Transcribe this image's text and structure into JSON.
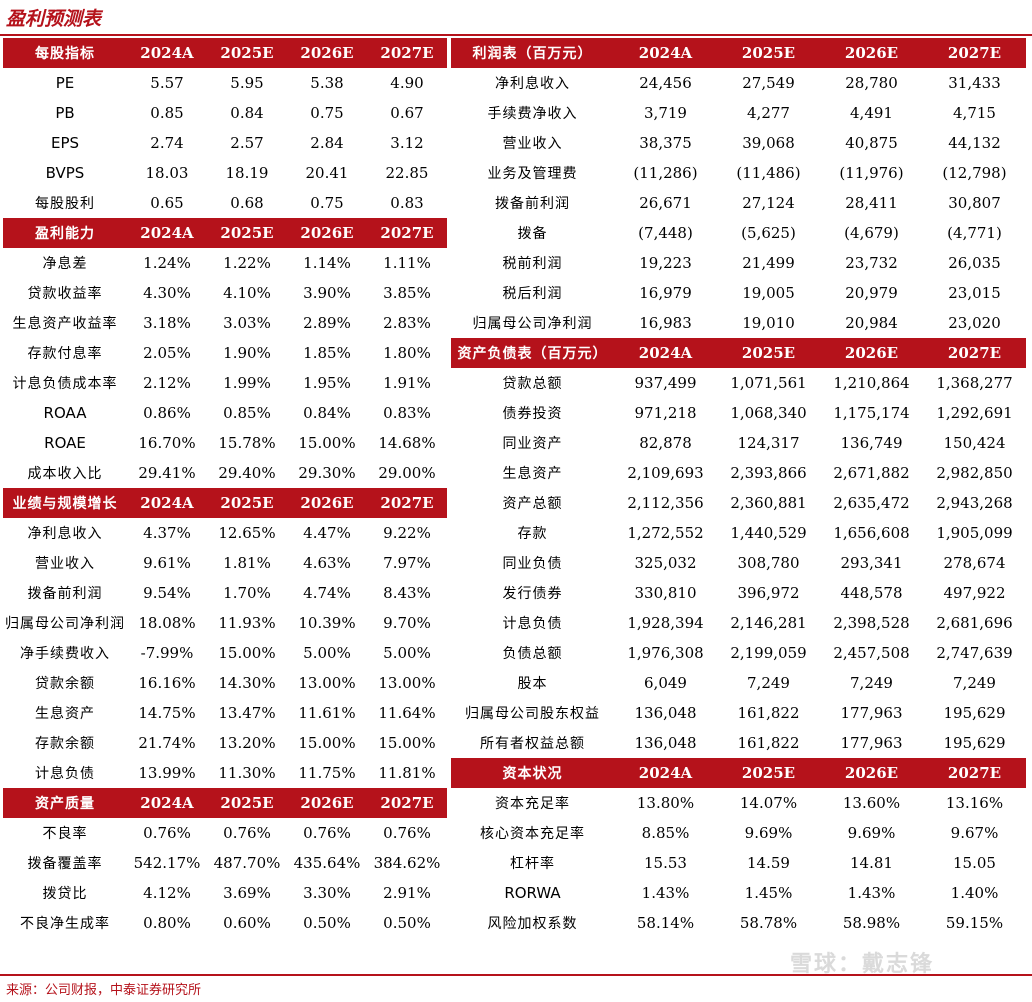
{
  "title": "盈利预测表",
  "source": "来源：公司财报，中泰证券研究所",
  "watermark": "雪球：戴志锋",
  "left_sections": [
    {
      "headers": [
        "每股指标",
        "2024A",
        "2025E",
        "2026E",
        "2027E"
      ],
      "rows": [
        [
          "PE",
          "5.57",
          "5.95",
          "5.38",
          "4.90"
        ],
        [
          "PB",
          "0.85",
          "0.84",
          "0.75",
          "0.67"
        ],
        [
          "EPS",
          "2.74",
          "2.57",
          "2.84",
          "3.12"
        ],
        [
          "BVPS",
          "18.03",
          "18.19",
          "20.41",
          "22.85"
        ],
        [
          "每股股利",
          "0.65",
          "0.68",
          "0.75",
          "0.83"
        ]
      ]
    },
    {
      "headers": [
        "盈利能力",
        "2024A",
        "2025E",
        "2026E",
        "2027E"
      ],
      "rows": [
        [
          "净息差",
          "1.24%",
          "1.22%",
          "1.14%",
          "1.11%"
        ],
        [
          "贷款收益率",
          "4.30%",
          "4.10%",
          "3.90%",
          "3.85%"
        ],
        [
          "生息资产收益率",
          "3.18%",
          "3.03%",
          "2.89%",
          "2.83%"
        ],
        [
          "存款付息率",
          "2.05%",
          "1.90%",
          "1.85%",
          "1.80%"
        ],
        [
          "计息负债成本率",
          "2.12%",
          "1.99%",
          "1.95%",
          "1.91%"
        ],
        [
          "ROAA",
          "0.86%",
          "0.85%",
          "0.84%",
          "0.83%"
        ],
        [
          "ROAE",
          "16.70%",
          "15.78%",
          "15.00%",
          "14.68%"
        ],
        [
          "成本收入比",
          "29.41%",
          "29.40%",
          "29.30%",
          "29.00%"
        ]
      ]
    },
    {
      "headers": [
        "业绩与规模增长",
        "2024A",
        "2025E",
        "2026E",
        "2027E"
      ],
      "rows": [
        [
          "净利息收入",
          "4.37%",
          "12.65%",
          "4.47%",
          "9.22%"
        ],
        [
          "营业收入",
          "9.61%",
          "1.81%",
          "4.63%",
          "7.97%"
        ],
        [
          "拨备前利润",
          "9.54%",
          "1.70%",
          "4.74%",
          "8.43%"
        ],
        [
          "归属母公司净利润",
          "18.08%",
          "11.93%",
          "10.39%",
          "9.70%"
        ],
        [
          "净手续费收入",
          "-7.99%",
          "15.00%",
          "5.00%",
          "5.00%"
        ],
        [
          "贷款余额",
          "16.16%",
          "14.30%",
          "13.00%",
          "13.00%"
        ],
        [
          "生息资产",
          "14.75%",
          "13.47%",
          "11.61%",
          "11.64%"
        ],
        [
          "存款余额",
          "21.74%",
          "13.20%",
          "15.00%",
          "15.00%"
        ],
        [
          "计息负债",
          "13.99%",
          "11.30%",
          "11.75%",
          "11.81%"
        ]
      ]
    },
    {
      "headers": [
        "资产质量",
        "2024A",
        "2025E",
        "2026E",
        "2027E"
      ],
      "rows": [
        [
          "不良率",
          "0.76%",
          "0.76%",
          "0.76%",
          "0.76%"
        ],
        [
          "拨备覆盖率",
          "542.17%",
          "487.70%",
          "435.64%",
          "384.62%"
        ],
        [
          "拨贷比",
          "4.12%",
          "3.69%",
          "3.30%",
          "2.91%"
        ],
        [
          "不良净生成率",
          "0.80%",
          "0.60%",
          "0.50%",
          "0.50%"
        ]
      ]
    }
  ],
  "right_sections": [
    {
      "headers": [
        "利润表（百万元）",
        "2024A",
        "2025E",
        "2026E",
        "2027E"
      ],
      "rows": [
        [
          "净利息收入",
          "24,456",
          "27,549",
          "28,780",
          "31,433"
        ],
        [
          "手续费净收入",
          "3,719",
          "4,277",
          "4,491",
          "4,715"
        ],
        [
          "营业收入",
          "38,375",
          "39,068",
          "40,875",
          "44,132"
        ],
        [
          "业务及管理费",
          "(11,286)",
          "(11,486)",
          "(11,976)",
          "(12,798)"
        ],
        [
          "拨备前利润",
          "26,671",
          "27,124",
          "28,411",
          "30,807"
        ],
        [
          "拨备",
          "(7,448)",
          "(5,625)",
          "(4,679)",
          "(4,771)"
        ],
        [
          "税前利润",
          "19,223",
          "21,499",
          "23,732",
          "26,035"
        ],
        [
          "税后利润",
          "16,979",
          "19,005",
          "20,979",
          "23,015"
        ],
        [
          "归属母公司净利润",
          "16,983",
          "19,010",
          "20,984",
          "23,020"
        ]
      ]
    },
    {
      "headers": [
        "资产负债表（百万元）",
        "2024A",
        "2025E",
        "2026E",
        "2027E"
      ],
      "rows": [
        [
          "贷款总额",
          "937,499",
          "1,071,561",
          "1,210,864",
          "1,368,277"
        ],
        [
          "债券投资",
          "971,218",
          "1,068,340",
          "1,175,174",
          "1,292,691"
        ],
        [
          "同业资产",
          "82,878",
          "124,317",
          "136,749",
          "150,424"
        ],
        [
          "生息资产",
          "2,109,693",
          "2,393,866",
          "2,671,882",
          "2,982,850"
        ],
        [
          "资产总额",
          "2,112,356",
          "2,360,881",
          "2,635,472",
          "2,943,268"
        ],
        [
          "存款",
          "1,272,552",
          "1,440,529",
          "1,656,608",
          "1,905,099"
        ],
        [
          "同业负债",
          "325,032",
          "308,780",
          "293,341",
          "278,674"
        ],
        [
          "发行债券",
          "330,810",
          "396,972",
          "448,578",
          "497,922"
        ],
        [
          "计息负债",
          "1,928,394",
          "2,146,281",
          "2,398,528",
          "2,681,696"
        ],
        [
          "负债总额",
          "1,976,308",
          "2,199,059",
          "2,457,508",
          "2,747,639"
        ],
        [
          "股本",
          "6,049",
          "7,249",
          "7,249",
          "7,249"
        ],
        [
          "归属母公司股东权益",
          "136,048",
          "161,822",
          "177,963",
          "195,629"
        ],
        [
          "所有者权益总额",
          "136,048",
          "161,822",
          "177,963",
          "195,629"
        ]
      ]
    },
    {
      "headers": [
        "资本状况",
        "2024A",
        "2025E",
        "2026E",
        "2027E"
      ],
      "rows": [
        [
          "资本充足率",
          "13.80%",
          "14.07%",
          "13.60%",
          "13.16%"
        ],
        [
          "核心资本充足率",
          "8.85%",
          "9.69%",
          "9.69%",
          "9.67%"
        ],
        [
          "杠杆率",
          "15.53",
          "14.59",
          "14.81",
          "15.05"
        ],
        [
          "RORWA",
          "1.43%",
          "1.45%",
          "1.43%",
          "1.40%"
        ],
        [
          "风险加权系数",
          "58.14%",
          "58.78%",
          "58.98%",
          "59.15%"
        ]
      ]
    }
  ]
}
